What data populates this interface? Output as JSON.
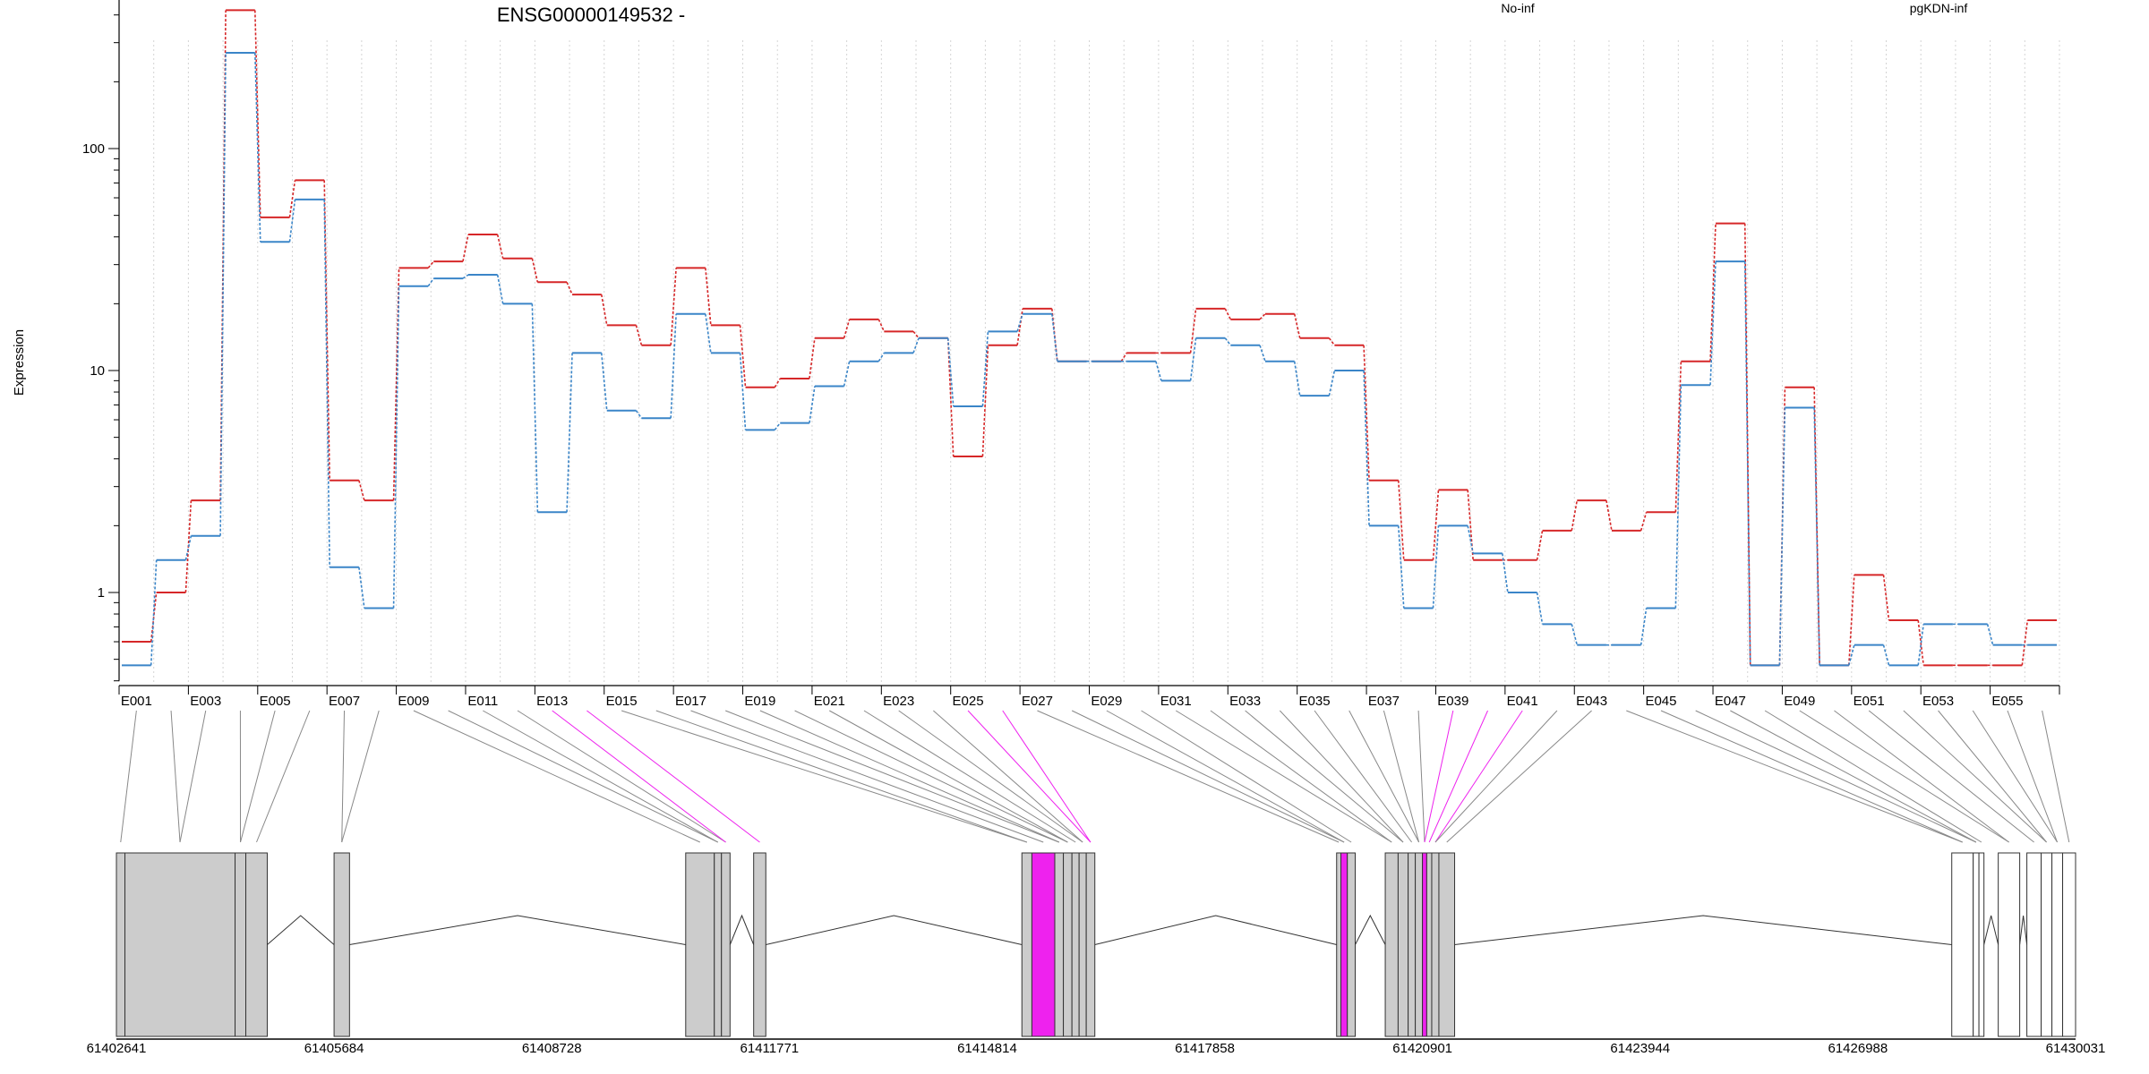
{
  "chart_data": {
    "type": "line",
    "title": "ENSG00000149532 -",
    "ylabel": "Expression",
    "xlabel": "",
    "yscale": "log",
    "ylim": [
      0.4,
      600
    ],
    "yticks": [
      {
        "v": 1,
        "label": "1"
      },
      {
        "v": 10,
        "label": "10"
      },
      {
        "v": 100,
        "label": "100"
      }
    ],
    "grid": "vertical dotted",
    "colors": {
      "No-inf": "#d62728",
      "pgKDN-inf": "#3a85c8",
      "highlight": "#ee22ee"
    },
    "categories": [
      "E001",
      "E002",
      "E003",
      "E004",
      "E005",
      "E006",
      "E007",
      "E008",
      "E009",
      "E010",
      "E011",
      "E012",
      "E013",
      "E014",
      "E015",
      "E016",
      "E017",
      "E018",
      "E019",
      "E020",
      "E021",
      "E022",
      "E023",
      "E024",
      "E025",
      "E026",
      "E027",
      "E028",
      "E029",
      "E030",
      "E031",
      "E032",
      "E033",
      "E034",
      "E035",
      "E036",
      "E037",
      "E038",
      "E039",
      "E040",
      "E041",
      "E042",
      "E043",
      "E044",
      "E045",
      "E046",
      "E047",
      "E048",
      "E049",
      "E050",
      "E051",
      "E052",
      "E053",
      "E054",
      "E055",
      "E056"
    ],
    "tick_labels": [
      "E001",
      "E003",
      "E005",
      "E007",
      "E009",
      "E011",
      "E013",
      "E015",
      "E017",
      "E019",
      "E021",
      "E023",
      "E025",
      "E027",
      "E029",
      "E031",
      "E033",
      "E035",
      "E037",
      "E039",
      "E041",
      "E043",
      "E045",
      "E047",
      "E049",
      "E051",
      "E053",
      "E055"
    ],
    "series": [
      {
        "name": "No-inf",
        "values": [
          0.6,
          1.0,
          2.6,
          420,
          49,
          72,
          3.2,
          2.6,
          29,
          31,
          41,
          32,
          25,
          22,
          16,
          13,
          29,
          16,
          8.4,
          9.2,
          14,
          17,
          15,
          14,
          4.1,
          13,
          19,
          11,
          11,
          12,
          12,
          19,
          17,
          18,
          14,
          13,
          3.2,
          1.4,
          2.9,
          1.4,
          1.4,
          1.9,
          2.6,
          1.9,
          2.3,
          11,
          46,
          0.47,
          8.4,
          0.47,
          1.2,
          0.75,
          0.47,
          0.47,
          0.47,
          0.75
        ]
      },
      {
        "name": "pgKDN-inf",
        "values": [
          0.47,
          1.4,
          1.8,
          270,
          38,
          59,
          1.3,
          0.85,
          24,
          26,
          27,
          20,
          2.3,
          12,
          6.6,
          6.1,
          18,
          12,
          5.4,
          5.8,
          8.5,
          11,
          12,
          14,
          6.9,
          15,
          18,
          11,
          11,
          11,
          9.0,
          14,
          13,
          11,
          7.7,
          10,
          2.0,
          0.85,
          2.0,
          1.5,
          1.0,
          0.72,
          0.58,
          0.58,
          0.85,
          8.6,
          31,
          0.47,
          6.8,
          0.47,
          0.58,
          0.47,
          0.72,
          0.72,
          0.58,
          0.58
        ]
      }
    ],
    "highlighted_exons": [
      "E013",
      "E014",
      "E025",
      "E026",
      "E039",
      "E040",
      "E041"
    ],
    "genomic_axis": {
      "range": [
        61402641,
        61430031
      ],
      "tick_labels": [
        "61402641",
        "61405684",
        "61408728",
        "61411771",
        "61414814",
        "61417858",
        "61420901",
        "61423944",
        "61426988",
        "61430031"
      ]
    },
    "exons_genomic": [
      [
        61402641,
        61402760
      ],
      [
        61402760,
        61404300
      ],
      [
        61404300,
        61404450
      ],
      [
        61404450,
        61404750
      ],
      [
        61405684,
        61405900
      ],
      [
        61410600,
        61411000
      ],
      [
        61411000,
        61411100
      ],
      [
        61411100,
        61411220
      ],
      [
        61411550,
        61411720
      ],
      [
        61415300,
        61415440
      ],
      [
        61415440,
        61415760
      ],
      [
        61415760,
        61415880
      ],
      [
        61415880,
        61416000
      ],
      [
        61416000,
        61416100
      ],
      [
        61416100,
        61416200
      ],
      [
        61416200,
        61416320
      ],
      [
        61419700,
        61419760
      ],
      [
        61419760,
        61419850
      ],
      [
        61419850,
        61419960
      ],
      [
        61420380,
        61420560
      ],
      [
        61420560,
        61420700
      ],
      [
        61420700,
        61420800
      ],
      [
        61420800,
        61420900
      ],
      [
        61420900,
        61420960
      ],
      [
        61420960,
        61421030
      ],
      [
        61421030,
        61421130
      ],
      [
        61421130,
        61421350
      ],
      [
        61428300,
        61428600
      ],
      [
        61428600,
        61428680
      ],
      [
        61428680,
        61428750
      ],
      [
        61428950,
        61429250
      ],
      [
        61429350,
        61429550
      ],
      [
        61429550,
        61429700
      ],
      [
        61429700,
        61429850
      ],
      [
        61429850,
        61430031
      ]
    ],
    "highlighted_exons_genomic": [
      [
        61415440,
        61415760
      ],
      [
        61419760,
        61419850
      ],
      [
        61420900,
        61420960
      ]
    ],
    "legend": [
      {
        "label": "No-inf",
        "color": "#d62728"
      },
      {
        "label": "pgKDN-inf",
        "color": "#3a85c8"
      }
    ],
    "legend_position": "top"
  }
}
